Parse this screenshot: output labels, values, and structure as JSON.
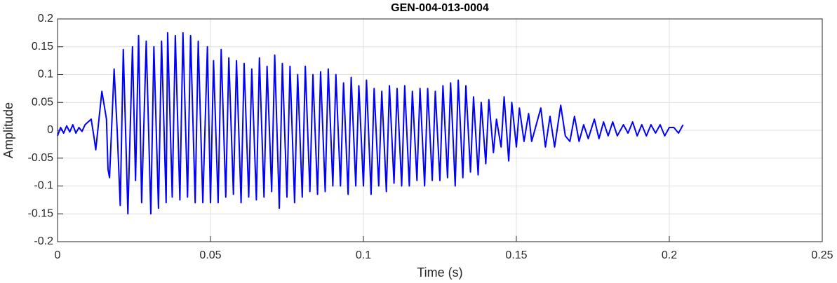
{
  "chart_data": {
    "type": "line",
    "title": "GEN-004-013-0004",
    "xlabel": "Time (s)",
    "ylabel": "Amplitude",
    "xlim": [
      0,
      0.25
    ],
    "xticks": [
      0,
      0.05,
      0.1,
      0.15,
      0.2,
      0.25
    ],
    "ylim": [
      -0.2,
      0.2
    ],
    "yticks": [
      -0.2,
      -0.15,
      -0.1,
      -0.05,
      0,
      0.05,
      0.1,
      0.15,
      0.2
    ],
    "grid": true,
    "series": [
      {
        "color": "#0000ff",
        "x": [
          0,
          0.001,
          0.002,
          0.003,
          0.004,
          0.005,
          0.006,
          0.007,
          0.008,
          0.009,
          0.01,
          0.011,
          0.012,
          0.0125,
          0.0145,
          0.016,
          0.0165,
          0.017,
          0.0185,
          0.0195,
          0.0205,
          0.0215,
          0.0225,
          0.023,
          0.0245,
          0.0255,
          0.0265,
          0.0275,
          0.029,
          0.0305,
          0.0315,
          0.033,
          0.034,
          0.0355,
          0.036,
          0.0375,
          0.0385,
          0.04,
          0.041,
          0.0425,
          0.0435,
          0.045,
          0.046,
          0.0475,
          0.049,
          0.05,
          0.051,
          0.0525,
          0.0535,
          0.055,
          0.056,
          0.0575,
          0.0585,
          0.06,
          0.061,
          0.0625,
          0.0635,
          0.065,
          0.066,
          0.0675,
          0.0685,
          0.07,
          0.071,
          0.0725,
          0.0735,
          0.075,
          0.076,
          0.0775,
          0.0785,
          0.08,
          0.081,
          0.0825,
          0.0835,
          0.085,
          0.086,
          0.0875,
          0.0885,
          0.09,
          0.091,
          0.0925,
          0.0935,
          0.095,
          0.096,
          0.0975,
          0.0985,
          0.1,
          0.101,
          0.1025,
          0.1035,
          0.105,
          0.106,
          0.1075,
          0.1085,
          0.11,
          0.111,
          0.1125,
          0.1135,
          0.115,
          0.116,
          0.1175,
          0.1185,
          0.12,
          0.121,
          0.1225,
          0.1235,
          0.125,
          0.126,
          0.1275,
          0.1285,
          0.13,
          0.131,
          0.1325,
          0.1335,
          0.135,
          0.136,
          0.1375,
          0.1385,
          0.14,
          0.141,
          0.1425,
          0.1435,
          0.145,
          0.146,
          0.1475,
          0.1485,
          0.15,
          0.151,
          0.1525,
          0.154,
          0.155,
          0.156,
          0.158,
          0.1595,
          0.161,
          0.1625,
          0.1645,
          0.166,
          0.1675,
          0.169,
          0.1705,
          0.172,
          0.1735,
          0.1755,
          0.177,
          0.1785,
          0.18,
          0.1815,
          0.183,
          0.185,
          0.1865,
          0.188,
          0.1895,
          0.191,
          0.1925,
          0.194,
          0.1955,
          0.197,
          0.1985,
          0.2,
          0.2015,
          0.203,
          0.2045
        ],
        "values": [
          -0.01,
          0.005,
          -0.005,
          0.008,
          -0.003,
          0.01,
          -0.005,
          0.005,
          -0.002,
          0.01,
          0.015,
          0.02,
          -0.015,
          -0.035,
          0.07,
          0.02,
          -0.07,
          -0.085,
          0.11,
          0,
          -0.135,
          0.145,
          -0.05,
          -0.15,
          0.15,
          -0.09,
          0.17,
          -0.13,
          0.16,
          -0.15,
          0.15,
          -0.14,
          0.16,
          -0.13,
          0.175,
          -0.12,
          0.17,
          -0.125,
          0.175,
          -0.12,
          0.17,
          -0.13,
          0.16,
          -0.13,
          0.15,
          -0.13,
          0.125,
          -0.13,
          0.145,
          -0.12,
          0.13,
          -0.115,
          0.125,
          -0.13,
          0.12,
          -0.12,
          0.11,
          -0.125,
          0.13,
          -0.12,
          0.115,
          -0.11,
          0.135,
          -0.14,
          0.12,
          -0.12,
          0.115,
          -0.13,
          0.1,
          -0.12,
          0.115,
          -0.11,
          0.1,
          -0.115,
          0.105,
          -0.11,
          0.11,
          -0.1,
          0.1,
          -0.1,
          0.085,
          -0.115,
          0.095,
          -0.1,
          0.08,
          -0.1,
          0.09,
          -0.115,
          0.075,
          -0.1,
          0.07,
          -0.11,
          0.08,
          -0.095,
          0.075,
          -0.1,
          0.08,
          -0.1,
          0.07,
          -0.09,
          0.075,
          -0.1,
          0.075,
          -0.09,
          0.07,
          -0.09,
          0.08,
          -0.085,
          0.085,
          -0.1,
          0.09,
          -0.085,
          0.08,
          -0.075,
          0.06,
          -0.08,
          0.05,
          -0.06,
          0.055,
          -0.04,
          0.02,
          -0.03,
          0.06,
          -0.055,
          0.05,
          -0.03,
          0.04,
          -0.02,
          0.03,
          -0.02,
          0,
          0.04,
          -0.03,
          0.025,
          -0.03,
          0.045,
          -0.01,
          -0.02,
          0.025,
          -0.02,
          0.01,
          -0.015,
          0.02,
          -0.015,
          0.015,
          -0.01,
          0.015,
          -0.01,
          0.01,
          -0.005,
          0.015,
          -0.01,
          0.01,
          -0.01,
          0.01,
          -0.005,
          0.01,
          -0.01,
          0.005,
          0.005,
          -0.005,
          0.01
        ]
      }
    ]
  }
}
